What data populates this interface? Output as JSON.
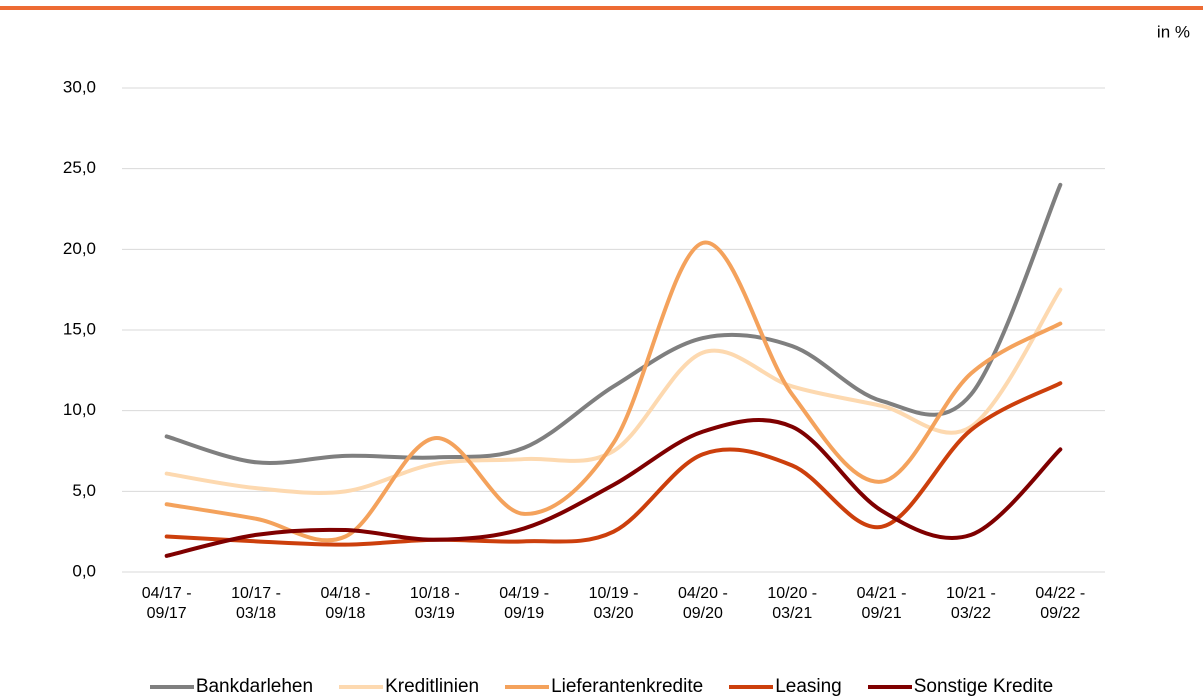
{
  "chart_data": {
    "type": "line",
    "y_axis_label": "in %",
    "categories": [
      "04/17 - 09/17",
      "10/17 - 03/18",
      "04/18 - 09/18",
      "10/18 - 03/19",
      "04/19 - 09/19",
      "10/19 - 03/20",
      "04/20 - 09/20",
      "10/20 - 03/21",
      "04/21 - 09/21",
      "10/21 - 03/22",
      "04/22 - 09/22"
    ],
    "series": [
      {
        "name": "Bankdarlehen",
        "color": "#7f7f7f",
        "values": [
          8.4,
          6.8,
          7.2,
          7.1,
          7.7,
          11.5,
          14.5,
          14.0,
          10.6,
          11.0,
          24.0
        ]
      },
      {
        "name": "Kreditlinien",
        "color": "#fdd9b0",
        "values": [
          6.1,
          5.2,
          5.0,
          6.7,
          7.0,
          7.5,
          13.6,
          11.5,
          10.3,
          9.0,
          17.5
        ]
      },
      {
        "name": "Lieferantenkredite",
        "color": "#f4a25c",
        "values": [
          4.2,
          3.3,
          2.2,
          8.3,
          3.6,
          8.0,
          20.4,
          11.0,
          5.6,
          12.3,
          15.4
        ]
      },
      {
        "name": "Leasing",
        "color": "#cc3f0c",
        "values": [
          2.2,
          1.9,
          1.7,
          2.0,
          1.9,
          2.5,
          7.3,
          6.6,
          2.8,
          8.8,
          11.7
        ]
      },
      {
        "name": "Sonstige Kredite",
        "color": "#7f0000",
        "values": [
          1.0,
          2.3,
          2.6,
          2.0,
          2.7,
          5.4,
          8.7,
          9.0,
          3.8,
          2.3,
          7.6
        ]
      }
    ],
    "ylim": [
      0,
      30
    ],
    "yticks": [
      {
        "value": 0,
        "label": "0,0"
      },
      {
        "value": 5,
        "label": "5,0"
      },
      {
        "value": 10,
        "label": "10,0"
      },
      {
        "value": 15,
        "label": "15,0"
      },
      {
        "value": 20,
        "label": "20,0"
      },
      {
        "value": 25,
        "label": "25,0"
      },
      {
        "value": 30,
        "label": "30,0"
      }
    ],
    "grid": true
  }
}
